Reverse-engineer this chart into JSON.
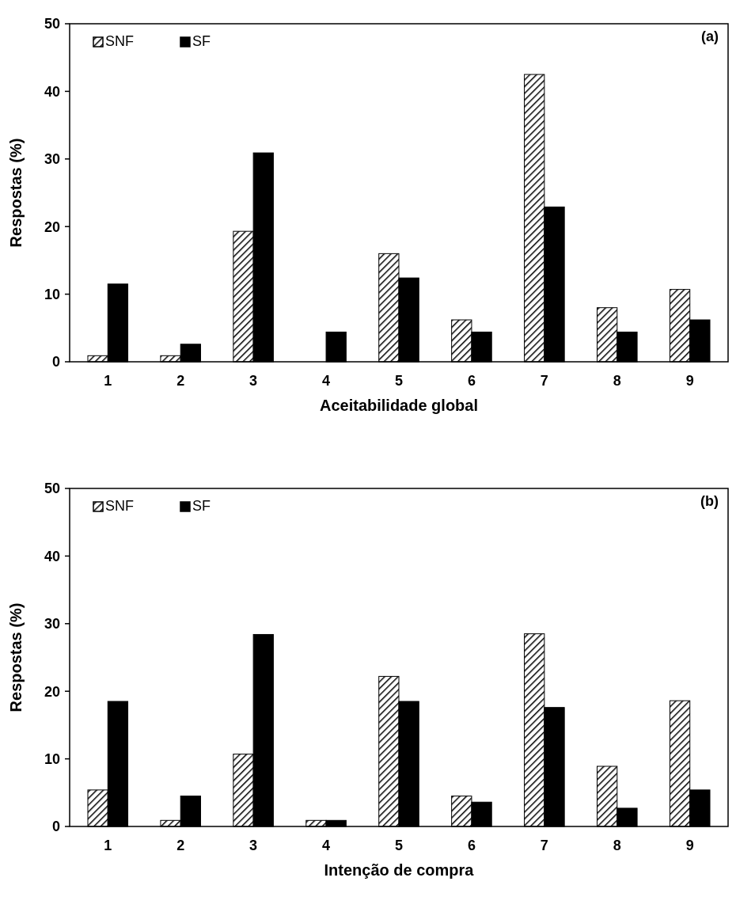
{
  "chart_data": [
    {
      "type": "bar",
      "title": "(a)",
      "xlabel": "Aceitabilidade global",
      "ylabel": "Respostas (%)",
      "categories": [
        "1",
        "2",
        "3",
        "4",
        "5",
        "6",
        "7",
        "8",
        "9"
      ],
      "ylim": [
        0,
        50
      ],
      "yticks": [
        0,
        10,
        20,
        30,
        40,
        50
      ],
      "legend": "top left",
      "grid": false,
      "series": [
        {
          "name": "SNF",
          "color": "#000000",
          "values": [
            0.9,
            0.9,
            19.3,
            0,
            16,
            6.2,
            42.5,
            8,
            10.7
          ]
        },
        {
          "name": "SF",
          "color": "#000000",
          "values": [
            11.5,
            2.6,
            30.9,
            4.4,
            12.4,
            4.4,
            22.9,
            4.4,
            6.2
          ]
        }
      ]
    },
    {
      "type": "bar",
      "title": "(b)",
      "xlabel": "Intenção de compra",
      "ylabel": "Respostas (%)",
      "categories": [
        "1",
        "2",
        "3",
        "4",
        "5",
        "6",
        "7",
        "8",
        "9"
      ],
      "ylim": [
        0,
        50
      ],
      "yticks": [
        0,
        10,
        20,
        30,
        40,
        50
      ],
      "legend": "top left",
      "grid": false,
      "series": [
        {
          "name": "SNF",
          "color": "#000000",
          "values": [
            5.4,
            0.9,
            10.7,
            0.9,
            22.2,
            4.5,
            28.5,
            8.9,
            18.6
          ]
        },
        {
          "name": "SF",
          "color": "#000000",
          "values": [
            18.5,
            4.5,
            28.4,
            0.9,
            18.5,
            3.6,
            17.6,
            2.7,
            5.4
          ]
        }
      ]
    }
  ]
}
